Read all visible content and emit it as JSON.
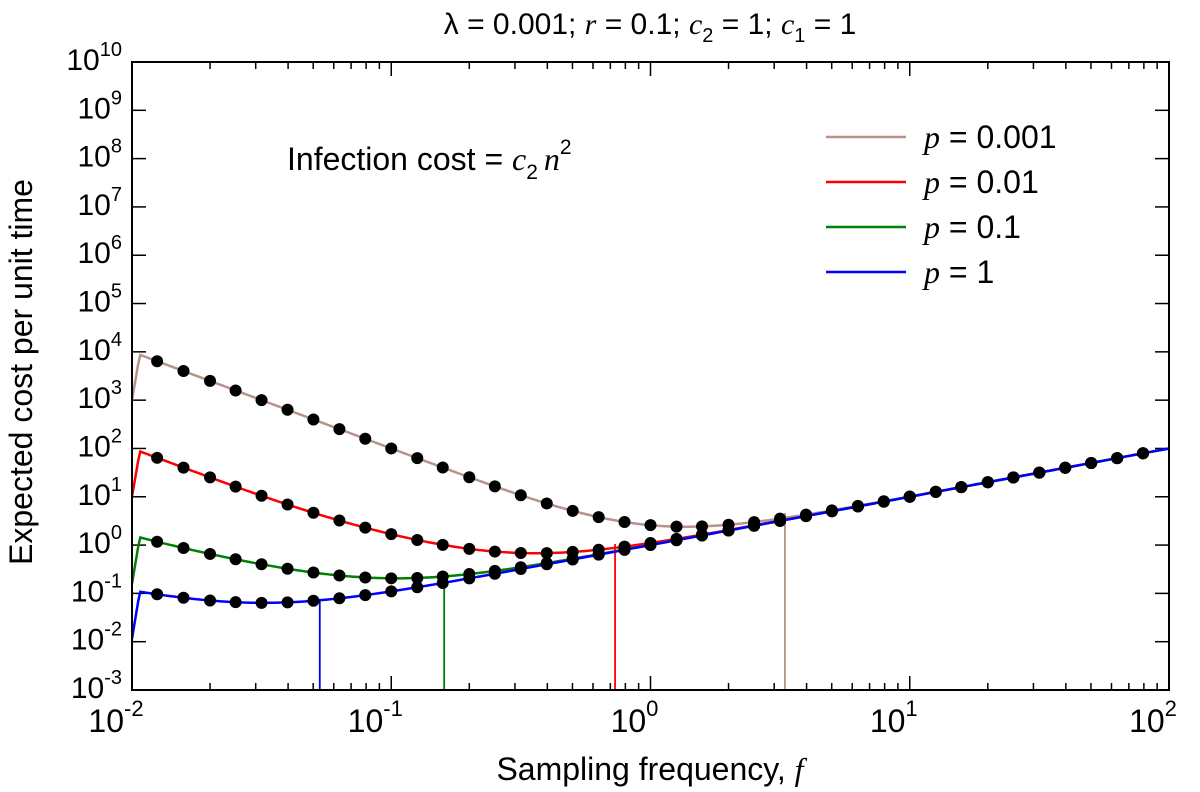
{
  "chart_data": {
    "type": "line",
    "title": "λ = 0.001;  r = 0.1;  c2 = 1;  c1 = 1",
    "title_parts": {
      "lambda_text": "λ = 0.001;  ",
      "r_sym": "r",
      "r_text": " = 0.1;  ",
      "c2_sym": "c",
      "c2_sub": "2",
      "c2_text": " = 1;  ",
      "c1_sym": "c",
      "c1_sub": "1",
      "c1_text": " = 1"
    },
    "xlabel": "Sampling frequency, f",
    "xlabel_text": "Sampling frequency, ",
    "xlabel_sym": "f",
    "ylabel": "Expected cost per unit time",
    "x_scale": "log",
    "y_scale": "log",
    "xlim": [
      0.01,
      100
    ],
    "ylim": [
      0.001,
      10000000000
    ],
    "x_ticks": [
      {
        "base": "10",
        "exp": "-2",
        "value": 0.01
      },
      {
        "base": "10",
        "exp": "-1",
        "value": 0.1
      },
      {
        "base": "10",
        "exp": "0",
        "value": 1
      },
      {
        "base": "10",
        "exp": "1",
        "value": 10
      },
      {
        "base": "10",
        "exp": "2",
        "value": 100
      }
    ],
    "y_ticks": [
      {
        "base": "10",
        "exp": "10",
        "value": 10000000000.0
      },
      {
        "base": "10",
        "exp": "9",
        "value": 1000000000.0
      },
      {
        "base": "10",
        "exp": "8",
        "value": 100000000.0
      },
      {
        "base": "10",
        "exp": "7",
        "value": 10000000.0
      },
      {
        "base": "10",
        "exp": "6",
        "value": 1000000.0
      },
      {
        "base": "10",
        "exp": "5",
        "value": 100000.0
      },
      {
        "base": "10",
        "exp": "4",
        "value": 10000.0
      },
      {
        "base": "10",
        "exp": "3",
        "value": 1000.0
      },
      {
        "base": "10",
        "exp": "2",
        "value": 100.0
      },
      {
        "base": "10",
        "exp": "1",
        "value": 10.0
      },
      {
        "base": "10",
        "exp": "0",
        "value": 1
      },
      {
        "base": "10",
        "exp": "-1",
        "value": 0.1
      },
      {
        "base": "10",
        "exp": "-2",
        "value": 0.01
      },
      {
        "base": "10",
        "exp": "-3",
        "value": 0.001
      }
    ],
    "annotation": {
      "text": "Infection cost = c2 n2",
      "prefix": "Infection cost = ",
      "c_sym": "c",
      "c_sub": "2",
      "n_sym": "n",
      "n_sup": "2"
    },
    "legend_position": "top-right",
    "model_parameters": {
      "lambda": 0.001,
      "r": 0.1,
      "c1": 1,
      "c2": 1
    },
    "series": [
      {
        "name": "p = 0.001",
        "label_sym": "p",
        "label_text": " = 0.001",
        "p": 0.001,
        "color": "#b8938b",
        "optimum_f": 3.3,
        "min_cost": 4.6
      },
      {
        "name": "p = 0.01",
        "label_sym": "p",
        "label_text": " = 0.01",
        "p": 0.01,
        "color": "#ff0000",
        "optimum_f": 0.73,
        "min_cost": 1.05
      },
      {
        "name": "p = 0.1",
        "label_sym": "p",
        "label_text": " = 0.1",
        "p": 0.1,
        "color": "#008000",
        "optimum_f": 0.16,
        "min_cost": 0.25
      },
      {
        "name": "p = 1",
        "label_sym": "p",
        "label_text": " = 1",
        "p": 1,
        "color": "#0000ff",
        "optimum_f": 0.053,
        "min_cost": 0.077
      }
    ],
    "marker_color": "#000000",
    "marker_f_values": [
      0.0125,
      0.0158,
      0.02,
      0.0251,
      0.0316,
      0.0398,
      0.0501,
      0.0631,
      0.0794,
      0.1,
      0.126,
      0.158,
      0.2,
      0.251,
      0.316,
      0.398,
      0.501,
      0.631,
      0.794,
      1,
      1.26,
      1.58,
      2,
      2.51,
      3.16,
      3.98,
      5.01,
      6.31,
      7.94,
      10,
      12.6,
      15.8,
      20,
      25.1,
      31.6,
      39.8,
      50.1,
      63.1,
      79.4
    ]
  }
}
